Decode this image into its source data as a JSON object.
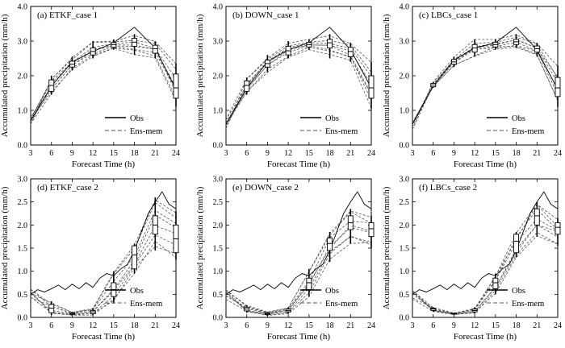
{
  "figure": {
    "x_axis_label": "Forecast Time (h)",
    "y_axis_label": "Accumulated precipitation (mm/h)",
    "legend": {
      "obs_label": "Obs",
      "ens_label": "Ens-mem",
      "placement": "bottom-right"
    },
    "colors": {
      "line": "#000000",
      "ensemble": "#555555",
      "box_fill": "#ffffff"
    }
  },
  "chart_data": [
    {
      "type": "line",
      "title": "(a) ETKF_case 1",
      "x": [
        3,
        6,
        9,
        12,
        15,
        18,
        21,
        24
      ],
      "x_ticks": [
        3,
        6,
        9,
        12,
        15,
        18,
        21,
        24
      ],
      "xlim": [
        3,
        24
      ],
      "ylim": [
        0,
        4
      ],
      "y_ticks": [
        "0.0",
        "1.0",
        "2.0",
        "3.0",
        "4.0"
      ],
      "obs": [
        0.7,
        1.7,
        2.4,
        2.7,
        2.95,
        3.4,
        2.8,
        1.6
      ],
      "box_x": [
        6,
        9,
        12,
        15,
        18,
        21,
        24
      ],
      "box": [
        {
          "whisker_low": 1.45,
          "q1": 1.55,
          "median": 1.72,
          "q3": 1.88,
          "whisker_high": 2.0
        },
        {
          "whisker_low": 2.15,
          "q1": 2.25,
          "median": 2.33,
          "q3": 2.42,
          "whisker_high": 2.55
        },
        {
          "whisker_low": 2.5,
          "q1": 2.6,
          "median": 2.7,
          "q3": 2.8,
          "whisker_high": 3.0
        },
        {
          "whisker_low": 2.75,
          "q1": 2.82,
          "median": 2.9,
          "q3": 2.96,
          "whisker_high": 3.05
        },
        {
          "whisker_low": 2.6,
          "q1": 2.85,
          "median": 2.97,
          "q3": 3.08,
          "whisker_high": 3.2
        },
        {
          "whisker_low": 2.5,
          "q1": 2.65,
          "median": 2.78,
          "q3": 2.88,
          "whisker_high": 3.0
        },
        {
          "whisker_low": 1.1,
          "q1": 1.35,
          "median": 1.65,
          "q3": 2.05,
          "whisker_high": 2.35
        }
      ]
    },
    {
      "type": "line",
      "title": "(b) DOWN_case 1",
      "x": [
        3,
        6,
        9,
        12,
        15,
        18,
        21,
        24
      ],
      "x_ticks": [
        3,
        6,
        9,
        12,
        15,
        18,
        21,
        24
      ],
      "xlim": [
        3,
        24
      ],
      "ylim": [
        0,
        4
      ],
      "y_ticks": [
        "0.0",
        "1.0",
        "2.0",
        "3.0",
        "4.0"
      ],
      "obs": [
        0.6,
        1.65,
        2.4,
        2.75,
        2.95,
        3.4,
        2.75,
        1.65
      ],
      "box_x": [
        6,
        9,
        12,
        15,
        18,
        21,
        24
      ],
      "box": [
        {
          "whisker_low": 1.45,
          "q1": 1.55,
          "median": 1.72,
          "q3": 1.85,
          "whisker_high": 1.95
        },
        {
          "whisker_low": 2.1,
          "q1": 2.25,
          "median": 2.35,
          "q3": 2.45,
          "whisker_high": 2.6
        },
        {
          "whisker_low": 2.5,
          "q1": 2.6,
          "median": 2.72,
          "q3": 2.85,
          "whisker_high": 3.0
        },
        {
          "whisker_low": 2.75,
          "q1": 2.83,
          "median": 2.9,
          "q3": 2.96,
          "whisker_high": 3.05
        },
        {
          "whisker_low": 2.5,
          "q1": 2.8,
          "median": 2.95,
          "q3": 3.05,
          "whisker_high": 3.2
        },
        {
          "whisker_low": 2.4,
          "q1": 2.55,
          "median": 2.7,
          "q3": 2.82,
          "whisker_high": 2.95
        },
        {
          "whisker_low": 1.05,
          "q1": 1.35,
          "median": 1.65,
          "q3": 2.0,
          "whisker_high": 2.4
        }
      ]
    },
    {
      "type": "line",
      "title": "(c) LBCs_case 1",
      "x": [
        3,
        6,
        9,
        12,
        15,
        18,
        21,
        24
      ],
      "x_ticks": [
        3,
        6,
        9,
        12,
        15,
        18,
        21,
        24
      ],
      "xlim": [
        3,
        24
      ],
      "ylim": [
        0,
        4
      ],
      "y_ticks": [
        "0.0",
        "1.0",
        "2.0",
        "3.0",
        "4.0"
      ],
      "obs": [
        0.6,
        1.7,
        2.45,
        2.8,
        2.95,
        3.4,
        2.75,
        1.6
      ],
      "box_x": [
        6,
        9,
        12,
        15,
        18,
        21,
        24
      ],
      "box": [
        {
          "whisker_low": 1.65,
          "q1": 1.68,
          "median": 1.73,
          "q3": 1.78,
          "whisker_high": 1.82
        },
        {
          "whisker_low": 2.25,
          "q1": 2.33,
          "median": 2.4,
          "q3": 2.47,
          "whisker_high": 2.55
        },
        {
          "whisker_low": 2.55,
          "q1": 2.68,
          "median": 2.8,
          "q3": 2.9,
          "whisker_high": 3.05
        },
        {
          "whisker_low": 2.75,
          "q1": 2.83,
          "median": 2.9,
          "q3": 2.97,
          "whisker_high": 3.05
        },
        {
          "whisker_low": 2.8,
          "q1": 2.9,
          "median": 2.98,
          "q3": 3.05,
          "whisker_high": 3.2
        },
        {
          "whisker_low": 2.55,
          "q1": 2.68,
          "median": 2.78,
          "q3": 2.86,
          "whisker_high": 2.95
        },
        {
          "whisker_low": 1.1,
          "q1": 1.4,
          "median": 1.65,
          "q3": 1.95,
          "whisker_high": 2.3
        }
      ]
    },
    {
      "type": "line",
      "title": "(d) ETKF_case 2",
      "x": [
        3,
        4,
        5,
        6,
        7,
        8,
        9,
        10,
        11,
        12,
        13,
        14,
        15,
        16,
        17,
        18,
        19,
        20,
        21,
        22,
        23,
        24
      ],
      "x_ticks": [
        3,
        6,
        9,
        12,
        15,
        18,
        21,
        24
      ],
      "xlim": [
        3,
        24
      ],
      "ylim": [
        0,
        3
      ],
      "y_ticks": [
        "0.0",
        "0.5",
        "1.0",
        "1.5",
        "2.0",
        "2.5",
        "3.0"
      ],
      "obs": [
        0.5,
        0.6,
        0.55,
        0.62,
        0.7,
        0.6,
        0.72,
        0.62,
        0.75,
        0.65,
        0.85,
        0.95,
        0.9,
        1.05,
        1.15,
        1.45,
        1.85,
        2.25,
        2.5,
        2.72,
        2.45,
        2.35
      ],
      "box_x": [
        6,
        9,
        12,
        15,
        18,
        21,
        24
      ],
      "box": [
        {
          "whisker_low": 0.05,
          "q1": 0.1,
          "median": 0.2,
          "q3": 0.28,
          "whisker_high": 0.35
        },
        {
          "whisker_low": 0.04,
          "q1": 0.06,
          "median": 0.08,
          "q3": 0.1,
          "whisker_high": 0.12
        },
        {
          "whisker_low": 0.05,
          "q1": 0.08,
          "median": 0.12,
          "q3": 0.15,
          "whisker_high": 0.2
        },
        {
          "whisker_low": 0.3,
          "q1": 0.45,
          "median": 0.6,
          "q3": 0.75,
          "whisker_high": 1.0
        },
        {
          "whisker_low": 0.95,
          "q1": 1.05,
          "median": 1.35,
          "q3": 1.55,
          "whisker_high": 1.6
        },
        {
          "whisker_low": 1.45,
          "q1": 1.8,
          "median": 2.0,
          "q3": 2.2,
          "whisker_high": 2.6
        },
        {
          "whisker_low": 1.25,
          "q1": 1.4,
          "median": 1.7,
          "q3": 2.0,
          "whisker_high": 2.3
        }
      ]
    },
    {
      "type": "line",
      "title": "(e) DOWN_case 2",
      "x": [
        3,
        4,
        5,
        6,
        7,
        8,
        9,
        10,
        11,
        12,
        13,
        14,
        15,
        16,
        17,
        18,
        19,
        20,
        21,
        22,
        23,
        24
      ],
      "x_ticks": [
        3,
        6,
        9,
        12,
        15,
        18,
        21,
        24
      ],
      "xlim": [
        3,
        24
      ],
      "ylim": [
        0,
        3
      ],
      "y_ticks": [
        "0.0",
        "0.5",
        "1.0",
        "1.5",
        "2.0",
        "2.5",
        "3.0"
      ],
      "obs": [
        0.5,
        0.6,
        0.55,
        0.62,
        0.7,
        0.6,
        0.72,
        0.62,
        0.75,
        0.65,
        0.85,
        0.95,
        0.9,
        1.05,
        1.15,
        1.45,
        1.85,
        2.25,
        2.5,
        2.72,
        2.45,
        2.35
      ],
      "box_x": [
        6,
        9,
        12,
        15,
        18,
        21,
        24
      ],
      "box": [
        {
          "whisker_low": 0.1,
          "q1": 0.14,
          "median": 0.18,
          "q3": 0.22,
          "whisker_high": 0.26
        },
        {
          "whisker_low": 0.04,
          "q1": 0.06,
          "median": 0.08,
          "q3": 0.1,
          "whisker_high": 0.12
        },
        {
          "whisker_low": 0.08,
          "q1": 0.12,
          "median": 0.15,
          "q3": 0.18,
          "whisker_high": 0.22
        },
        {
          "whisker_low": 0.45,
          "q1": 0.6,
          "median": 0.75,
          "q3": 0.85,
          "whisker_high": 1.05
        },
        {
          "whisker_low": 1.2,
          "q1": 1.45,
          "median": 1.6,
          "q3": 1.72,
          "whisker_high": 1.85
        },
        {
          "whisker_low": 1.6,
          "q1": 1.9,
          "median": 2.05,
          "q3": 2.2,
          "whisker_high": 2.35
        },
        {
          "whisker_low": 1.5,
          "q1": 1.75,
          "median": 1.92,
          "q3": 2.05,
          "whisker_high": 2.2
        }
      ]
    },
    {
      "type": "line",
      "title": "(f) LBCs_case 2",
      "x": [
        3,
        4,
        5,
        6,
        7,
        8,
        9,
        10,
        11,
        12,
        13,
        14,
        15,
        16,
        17,
        18,
        19,
        20,
        21,
        22,
        23,
        24
      ],
      "x_ticks": [
        3,
        6,
        9,
        12,
        15,
        18,
        21,
        24
      ],
      "xlim": [
        3,
        24
      ],
      "ylim": [
        0,
        3
      ],
      "y_ticks": [
        "0.0",
        "0.5",
        "1.0",
        "1.5",
        "2.0",
        "2.5",
        "3.0"
      ],
      "obs": [
        0.5,
        0.6,
        0.55,
        0.62,
        0.7,
        0.6,
        0.72,
        0.62,
        0.75,
        0.65,
        0.85,
        0.95,
        0.9,
        1.05,
        1.15,
        1.45,
        1.85,
        2.25,
        2.5,
        2.72,
        2.45,
        2.35
      ],
      "box_x": [
        6,
        9,
        12,
        15,
        18,
        21,
        24
      ],
      "box": [
        {
          "whisker_low": 0.12,
          "q1": 0.15,
          "median": 0.18,
          "q3": 0.2,
          "whisker_high": 0.22
        },
        {
          "whisker_low": 0.06,
          "q1": 0.07,
          "median": 0.08,
          "q3": 0.09,
          "whisker_high": 0.1
        },
        {
          "whisker_low": 0.08,
          "q1": 0.12,
          "median": 0.15,
          "q3": 0.18,
          "whisker_high": 0.22
        },
        {
          "whisker_low": 0.5,
          "q1": 0.62,
          "median": 0.75,
          "q3": 0.85,
          "whisker_high": 0.95
        },
        {
          "whisker_low": 1.3,
          "q1": 1.4,
          "median": 1.65,
          "q3": 1.8,
          "whisker_high": 1.85
        },
        {
          "whisker_low": 1.75,
          "q1": 2.0,
          "median": 2.2,
          "q3": 2.35,
          "whisker_high": 2.5
        },
        {
          "whisker_low": 1.55,
          "q1": 1.8,
          "median": 1.95,
          "q3": 2.05,
          "whisker_high": 2.15
        }
      ]
    }
  ]
}
